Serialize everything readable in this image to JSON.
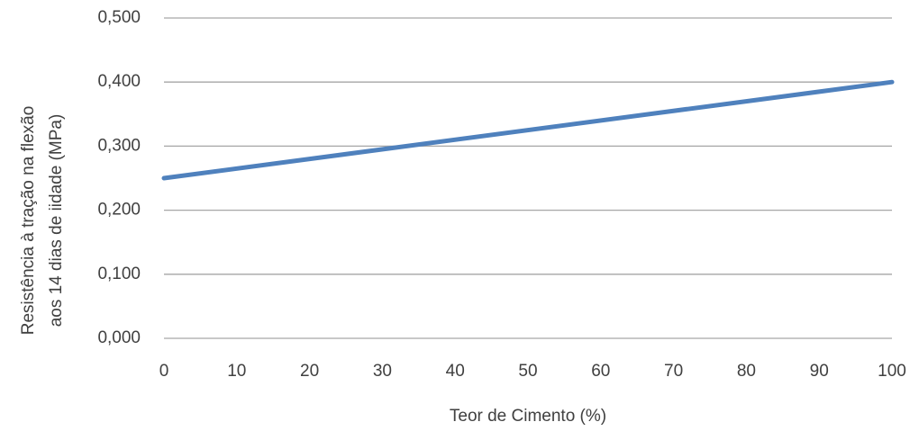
{
  "chart_data": {
    "type": "line",
    "xlabel": "Teor de Cimento  (%)",
    "ylabel": [
      "Resistência à tração na flexão",
      "aos 14 dias de iidade (MPa)"
    ],
    "x": [
      0,
      100
    ],
    "series": [
      {
        "name": "Resistência",
        "color": "#4f81bd",
        "values": [
          0.25,
          0.4
        ]
      }
    ],
    "xlim": [
      0,
      100
    ],
    "xticks": [
      0,
      10,
      20,
      30,
      40,
      50,
      60,
      70,
      80,
      90,
      100
    ],
    "ylim": [
      0,
      0.5
    ],
    "yticks": [
      {
        "value": 0,
        "label": "0,000"
      },
      {
        "value": 0.1,
        "label": "0,100"
      },
      {
        "value": 0.2,
        "label": "0,200"
      },
      {
        "value": 0.3,
        "label": "0,300"
      },
      {
        "value": 0.4,
        "label": "0,400"
      },
      {
        "value": 0.5,
        "label": "0,500"
      }
    ],
    "grid": true
  }
}
